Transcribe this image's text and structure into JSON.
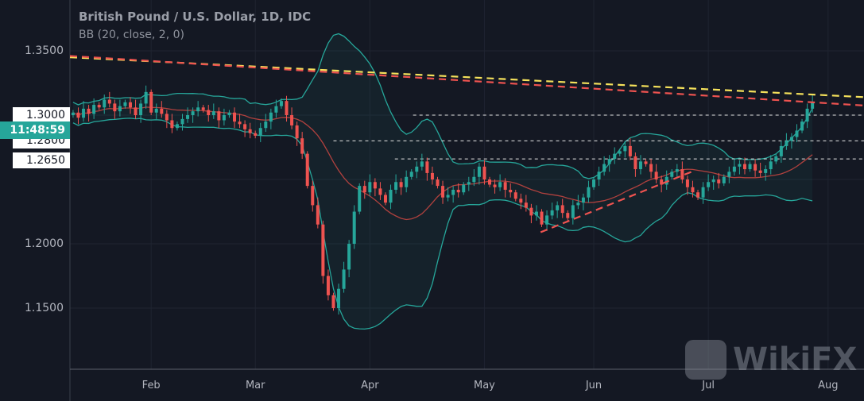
{
  "chart_data": {
    "type": "candlestick",
    "title": "British Pound / U.S. Dollar, 1D, IDC",
    "indicator": "BB (20, close, 2, 0)",
    "ylim": [
      1.1025,
      1.3895
    ],
    "y_ticks": [
      "1.3500",
      "1.2000",
      "1.1500"
    ],
    "y_tick_values": [
      1.35,
      1.2,
      1.15
    ],
    "highlighted_y_labels": [
      {
        "label": "1.3000",
        "value": 1.3
      },
      {
        "label": "1.2800",
        "value": 1.28
      },
      {
        "label": "1.2650",
        "value": 1.265
      }
    ],
    "crosshair_label": {
      "label": "11:48:59",
      "value": 1.2885
    },
    "x_ticks": [
      {
        "label": "Feb",
        "index": 15
      },
      {
        "label": "Mar",
        "index": 35
      },
      {
        "label": "Apr",
        "index": 57
      },
      {
        "label": "May",
        "index": 79
      },
      {
        "label": "Jun",
        "index": 100
      },
      {
        "label": "Jul",
        "index": 122
      },
      {
        "label": "Aug",
        "index": 145
      }
    ],
    "x_range": [
      -0.6,
      151.9
    ],
    "first_open": 1.3,
    "closes": [
      1.302,
      1.298,
      1.305,
      1.301,
      1.308,
      1.306,
      1.312,
      1.309,
      1.303,
      1.307,
      1.31,
      1.306,
      1.3,
      1.309,
      1.318,
      1.302,
      1.305,
      1.301,
      1.296,
      1.29,
      1.293,
      1.297,
      1.3,
      1.303,
      1.306,
      1.304,
      1.3,
      1.303,
      1.296,
      1.3,
      1.302,
      1.295,
      1.293,
      1.289,
      1.286,
      1.284,
      1.29,
      1.295,
      1.302,
      1.307,
      1.311,
      1.3,
      1.292,
      1.282,
      1.27,
      1.245,
      1.23,
      1.215,
      1.175,
      1.16,
      1.15,
      1.165,
      1.18,
      1.2,
      1.225,
      1.245,
      1.24,
      1.248,
      1.243,
      1.238,
      1.232,
      1.242,
      1.248,
      1.244,
      1.252,
      1.256,
      1.26,
      1.264,
      1.255,
      1.25,
      1.245,
      1.236,
      1.238,
      1.242,
      1.24,
      1.246,
      1.248,
      1.252,
      1.26,
      1.25,
      1.246,
      1.244,
      1.248,
      1.242,
      1.24,
      1.235,
      1.232,
      1.228,
      1.222,
      1.225,
      1.215,
      1.222,
      1.226,
      1.23,
      1.224,
      1.22,
      1.23,
      1.232,
      1.236,
      1.244,
      1.25,
      1.256,
      1.262,
      1.266,
      1.27,
      1.272,
      1.276,
      1.268,
      1.258,
      1.264,
      1.262,
      1.256,
      1.25,
      1.246,
      1.252,
      1.256,
      1.258,
      1.25,
      1.244,
      1.24,
      1.236,
      1.244,
      1.248,
      1.25,
      1.247,
      1.252,
      1.256,
      1.26,
      1.262,
      1.258,
      1.262,
      1.257,
      1.255,
      1.258,
      1.264,
      1.268,
      1.276,
      1.28,
      1.283,
      1.288,
      1.295,
      1.305,
      1.31
    ],
    "trendlines": [
      {
        "name": "yellow-resistance",
        "color": "#f5e15b",
        "from": [
          -0.6,
          1.345
        ],
        "to": [
          151.9,
          1.314
        ]
      },
      {
        "name": "red-resistance",
        "color": "#ef5350",
        "from": [
          -0.6,
          1.346
        ],
        "to": [
          151.9,
          1.3075
        ]
      },
      {
        "name": "red-support",
        "color": "#ef5350",
        "from": [
          89.8,
          1.209
        ],
        "to": [
          118.8,
          1.256
        ]
      }
    ],
    "levels": [
      {
        "value": 1.3,
        "from_index": 65.3
      },
      {
        "value": 1.28,
        "from_index": 50
      },
      {
        "value": 1.266,
        "from_index": 61.8
      }
    ],
    "colors": {
      "up": "#26a69a",
      "down": "#ef5350",
      "band": "#26a69a",
      "basis": "#b0413e",
      "background": "#141823"
    }
  },
  "watermark": "WikiFX"
}
